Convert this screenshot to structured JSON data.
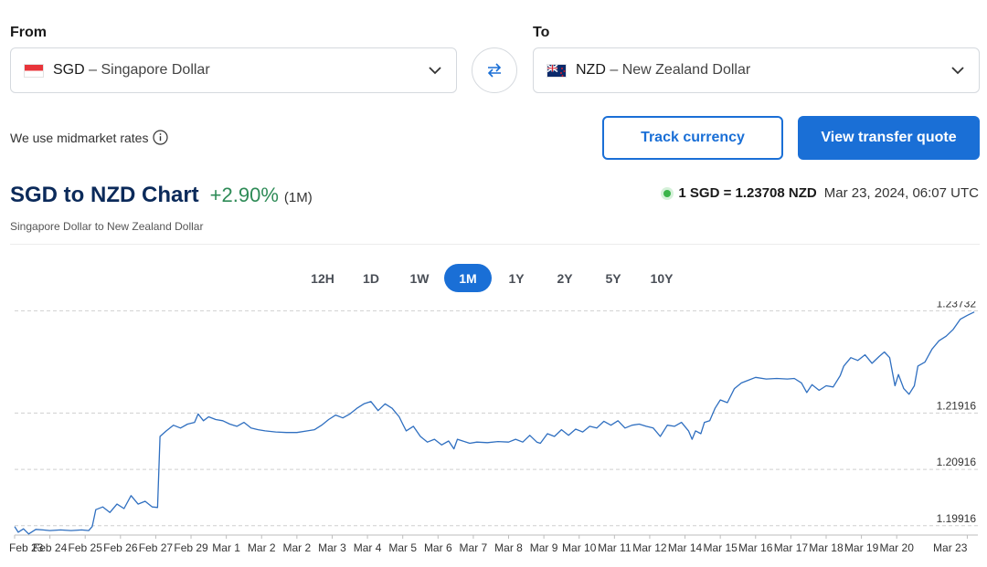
{
  "converter": {
    "from_label": "From",
    "to_label": "To",
    "from": {
      "code": "SGD",
      "name": "– Singapore Dollar",
      "flag_icon": "singapore-flag-icon"
    },
    "to": {
      "code": "NZD",
      "name": "– New Zealand Dollar",
      "flag_icon": "new-zealand-flag-icon"
    },
    "swap_icon": "swap-arrows-icon",
    "midmarket_text": "We use midmarket rates",
    "track_label": "Track currency",
    "quote_label": "View transfer quote",
    "accent_color": "#1a6fd6"
  },
  "header": {
    "title": "SGD to NZD Chart",
    "change": "+2.90%",
    "change_period": "(1M)",
    "subtitle": "Singapore Dollar to New Zealand Dollar",
    "rate": "1 SGD = 1.23708 NZD",
    "timestamp": "Mar 23, 2024, 06:07 UTC"
  },
  "ranges": [
    {
      "label": "12H",
      "active": false
    },
    {
      "label": "1D",
      "active": false
    },
    {
      "label": "1W",
      "active": false
    },
    {
      "label": "1M",
      "active": true
    },
    {
      "label": "1Y",
      "active": false
    },
    {
      "label": "2Y",
      "active": false
    },
    {
      "label": "5Y",
      "active": false
    },
    {
      "label": "10Y",
      "active": false
    }
  ],
  "chart_data": {
    "type": "line",
    "title": "SGD to NZD Chart",
    "xlabel": "",
    "ylabel": "",
    "ylim": [
      1.1975,
      1.239
    ],
    "y_gridlines": [
      1.23732,
      1.21916,
      1.20916,
      1.19916
    ],
    "y_tick_labels": [
      "1.23732",
      "1.21916",
      "1.20916",
      "1.19916"
    ],
    "grid": "horizontal dashed",
    "line_color": "#2f6fc0",
    "x_tick_labels": [
      "Feb 23",
      "Feb 24",
      "Feb 25",
      "Feb 26",
      "Feb 27",
      "Feb 29",
      "Mar 1",
      "Mar 2",
      "Mar 2",
      "Mar 3",
      "Mar 4",
      "Mar 5",
      "Mar 6",
      "Mar 7",
      "Mar 8",
      "Mar 9",
      "Mar 10",
      "Mar 11",
      "Mar 12",
      "Mar 14",
      "Mar 15",
      "Mar 16",
      "Mar 17",
      "Mar 18",
      "Mar 19",
      "Mar 20",
      "Mar 23"
    ],
    "x_tick_positions": [
      0,
      1,
      2,
      3,
      4,
      5,
      6,
      7,
      8,
      9,
      10,
      11,
      12,
      13,
      14,
      15,
      16,
      17,
      18,
      19,
      20,
      21,
      22,
      23,
      24,
      25,
      27
    ],
    "x_range": [
      0,
      27.3
    ],
    "series": [
      {
        "points": [
          [
            0.0,
            1.199
          ],
          [
            0.1,
            1.198
          ],
          [
            0.25,
            1.1986
          ],
          [
            0.4,
            1.1977
          ],
          [
            0.6,
            1.1985
          ],
          [
            0.8,
            1.1984
          ],
          [
            1.0,
            1.1983
          ],
          [
            1.3,
            1.1984
          ],
          [
            1.6,
            1.1983
          ],
          [
            1.9,
            1.1984
          ],
          [
            2.1,
            1.1983
          ],
          [
            2.2,
            1.199
          ],
          [
            2.3,
            1.202
          ],
          [
            2.5,
            1.2025
          ],
          [
            2.7,
            1.2015
          ],
          [
            2.9,
            1.203
          ],
          [
            3.1,
            1.2022
          ],
          [
            3.3,
            1.2045
          ],
          [
            3.5,
            1.203
          ],
          [
            3.7,
            1.2035
          ],
          [
            3.9,
            1.2025
          ],
          [
            4.05,
            1.2024
          ],
          [
            4.12,
            1.215
          ],
          [
            4.3,
            1.216
          ],
          [
            4.5,
            1.217
          ],
          [
            4.7,
            1.2165
          ],
          [
            4.9,
            1.2172
          ],
          [
            5.1,
            1.2175
          ],
          [
            5.2,
            1.219
          ],
          [
            5.35,
            1.2178
          ],
          [
            5.5,
            1.2185
          ],
          [
            5.7,
            1.218
          ],
          [
            5.9,
            1.2178
          ],
          [
            6.1,
            1.2172
          ],
          [
            6.3,
            1.2168
          ],
          [
            6.5,
            1.2175
          ],
          [
            6.7,
            1.2165
          ],
          [
            6.9,
            1.2162
          ],
          [
            7.1,
            1.216
          ],
          [
            7.4,
            1.2158
          ],
          [
            7.7,
            1.2157
          ],
          [
            8.0,
            1.2157
          ],
          [
            8.3,
            1.216
          ],
          [
            8.5,
            1.2162
          ],
          [
            8.7,
            1.217
          ],
          [
            8.9,
            1.218
          ],
          [
            9.1,
            1.2188
          ],
          [
            9.3,
            1.2183
          ],
          [
            9.5,
            1.219
          ],
          [
            9.7,
            1.22
          ],
          [
            9.9,
            1.2208
          ],
          [
            10.1,
            1.2212
          ],
          [
            10.3,
            1.2196
          ],
          [
            10.5,
            1.2208
          ],
          [
            10.7,
            1.22
          ],
          [
            10.9,
            1.2185
          ],
          [
            11.0,
            1.2172
          ],
          [
            11.1,
            1.216
          ],
          [
            11.3,
            1.2168
          ],
          [
            11.5,
            1.215
          ],
          [
            11.7,
            1.214
          ],
          [
            11.9,
            1.2145
          ],
          [
            12.1,
            1.2135
          ],
          [
            12.3,
            1.2142
          ],
          [
            12.45,
            1.2128
          ],
          [
            12.55,
            1.2145
          ],
          [
            12.7,
            1.2142
          ],
          [
            12.9,
            1.2138
          ],
          [
            13.1,
            1.214
          ],
          [
            13.4,
            1.2139
          ],
          [
            13.7,
            1.2141
          ],
          [
            14.0,
            1.214
          ],
          [
            14.2,
            1.2145
          ],
          [
            14.4,
            1.214
          ],
          [
            14.6,
            1.2152
          ],
          [
            14.8,
            1.214
          ],
          [
            14.9,
            1.2138
          ],
          [
            15.1,
            1.2155
          ],
          [
            15.3,
            1.215
          ],
          [
            15.5,
            1.2162
          ],
          [
            15.7,
            1.2152
          ],
          [
            15.9,
            1.2163
          ],
          [
            16.1,
            1.2158
          ],
          [
            16.3,
            1.2168
          ],
          [
            16.5,
            1.2165
          ],
          [
            16.7,
            1.2177
          ],
          [
            16.9,
            1.217
          ],
          [
            17.1,
            1.2178
          ],
          [
            17.3,
            1.2165
          ],
          [
            17.5,
            1.217
          ],
          [
            17.7,
            1.2172
          ],
          [
            17.9,
            1.2168
          ],
          [
            18.1,
            1.2165
          ],
          [
            18.3,
            1.215
          ],
          [
            18.5,
            1.217
          ],
          [
            18.7,
            1.2168
          ],
          [
            18.9,
            1.2175
          ],
          [
            19.1,
            1.216
          ],
          [
            19.2,
            1.2145
          ],
          [
            19.3,
            1.216
          ],
          [
            19.45,
            1.2155
          ],
          [
            19.55,
            1.2175
          ],
          [
            19.7,
            1.2178
          ],
          [
            19.85,
            1.22
          ],
          [
            20.0,
            1.2215
          ],
          [
            20.2,
            1.221
          ],
          [
            20.4,
            1.2235
          ],
          [
            20.6,
            1.2245
          ],
          [
            20.8,
            1.225
          ],
          [
            21.0,
            1.2255
          ],
          [
            21.3,
            1.2252
          ],
          [
            21.6,
            1.2253
          ],
          [
            21.9,
            1.2252
          ],
          [
            22.1,
            1.2253
          ],
          [
            22.3,
            1.2245
          ],
          [
            22.45,
            1.2228
          ],
          [
            22.6,
            1.2242
          ],
          [
            22.8,
            1.2232
          ],
          [
            23.0,
            1.224
          ],
          [
            23.2,
            1.2238
          ],
          [
            23.4,
            1.2258
          ],
          [
            23.5,
            1.2275
          ],
          [
            23.7,
            1.229
          ],
          [
            23.9,
            1.2285
          ],
          [
            24.1,
            1.2295
          ],
          [
            24.3,
            1.228
          ],
          [
            24.5,
            1.2292
          ],
          [
            24.65,
            1.23
          ],
          [
            24.8,
            1.229
          ],
          [
            24.95,
            1.224
          ],
          [
            25.05,
            1.226
          ],
          [
            25.2,
            1.2235
          ],
          [
            25.35,
            1.2225
          ],
          [
            25.5,
            1.224
          ],
          [
            25.6,
            1.2275
          ],
          [
            25.8,
            1.2282
          ],
          [
            26.0,
            1.2305
          ],
          [
            26.2,
            1.232
          ],
          [
            26.4,
            1.2328
          ],
          [
            26.6,
            1.234
          ],
          [
            26.8,
            1.2358
          ],
          [
            27.0,
            1.2365
          ],
          [
            27.2,
            1.2371
          ]
        ]
      }
    ]
  }
}
